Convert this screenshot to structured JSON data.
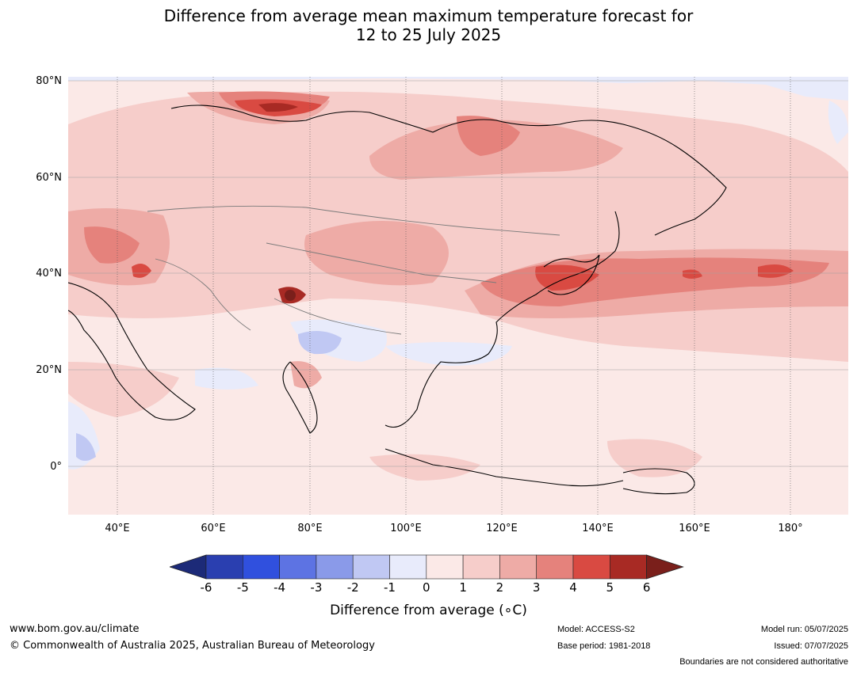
{
  "title_line1": "Difference from average mean maximum temperature forecast for",
  "title_line2": "12 to 25 July 2025",
  "map": {
    "lat_labels": [
      "80°N",
      "60°N",
      "40°N",
      "20°N",
      "0°"
    ],
    "lon_labels": [
      "40°E",
      "60°E",
      "80°E",
      "100°E",
      "120°E",
      "140°E",
      "160°E",
      "180°"
    ],
    "gridlines": true
  },
  "colorbar": {
    "ticks": [
      "-6",
      "-5",
      "-4",
      "-3",
      "-2",
      "-1",
      "0",
      "1",
      "2",
      "3",
      "4",
      "5",
      "6"
    ],
    "colors": {
      "below": "#1c2a78",
      "bins": [
        "#2a3fb0",
        "#3050de",
        "#5d73e3",
        "#8a9ae9",
        "#c0c8f3",
        "#e8ebfb",
        "#fbe9e7",
        "#f6cdca",
        "#eeaba6",
        "#e5827c",
        "#d94a42",
        "#a82a24"
      ],
      "above": "#7a1f1b"
    },
    "label": "Difference from average (∘C)"
  },
  "footer": {
    "url": "www.bom.gov.au/climate",
    "copyright": "© Commonwealth of Australia 2025, Australian Bureau of Meteorology",
    "model": "Model: ACCESS-S2",
    "base_period": "Base period: 1981-2018",
    "model_run": "Model run: 05/07/2025",
    "issued": "Issued: 07/07/2025",
    "disclaimer": "Boundaries are not considered authoritative"
  }
}
